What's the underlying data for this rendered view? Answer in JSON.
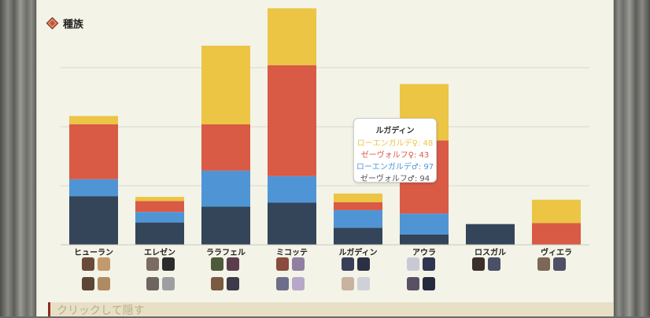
{
  "section": {
    "title": "種族",
    "icon": "diamond-icon"
  },
  "footer": {
    "label": "クリックして隠す"
  },
  "colors": {
    "navy": "#344459",
    "blue": "#4f95d6",
    "red": "#d95a45",
    "yellow": "#ebc543"
  },
  "chart_data": {
    "type": "bar",
    "stacked": true,
    "categories": [
      "ヒューラン",
      "エレゼン",
      "ララフェル",
      "ミコッテ",
      "ルガディン",
      "アウラ",
      "ロスガル",
      "ヴィエラ"
    ],
    "series": [
      {
        "name": "ゼーヴォルフ♂",
        "color": "#344459",
        "values": [
          268,
          123,
          210,
          232,
          94,
          57,
          114,
          0
        ]
      },
      {
        "name": "ローエンガルデ♂",
        "color": "#4f95d6",
        "values": [
          93,
          58,
          198,
          146,
          97,
          115,
          0,
          0
        ]
      },
      {
        "name": "ゼーヴォルフ♀",
        "color": "#d95a45",
        "values": [
          303,
          60,
          255,
          611,
          43,
          403,
          0,
          120
        ]
      },
      {
        "name": "ローエンガルデ♀",
        "color": "#ebc543",
        "values": [
          45,
          23,
          433,
          313,
          48,
          310,
          0,
          128
        ]
      }
    ],
    "ylim": [
      0,
      1300
    ],
    "grid": true,
    "legend": "none",
    "tooltip": {
      "category": "ルガディン",
      "rows": [
        {
          "label": "ローエンガルデ♀: 48",
          "color": "#ebc543"
        },
        {
          "label": "ゼーヴォルフ♀: 43",
          "color": "#d95a45"
        },
        {
          "label": "ローエンガルデ♂: 97",
          "color": "#4f95d6"
        },
        {
          "label": "ゼーヴォルフ♂: 94",
          "color": "#555555"
        }
      ]
    }
  }
}
